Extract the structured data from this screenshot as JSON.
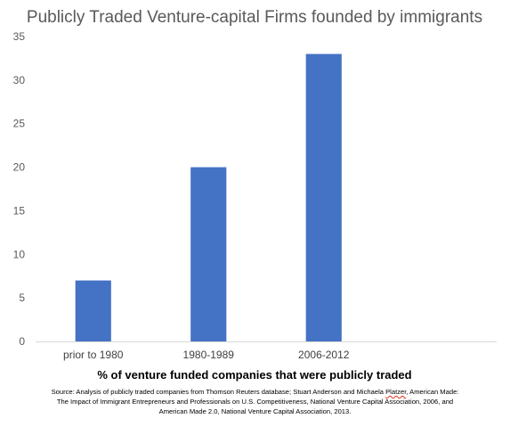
{
  "chart_data": {
    "type": "bar",
    "title": "Publicly Traded Venture-capital Firms founded by immigrants",
    "categories": [
      "prior to 1980",
      "1980-1989",
      "2006-2012"
    ],
    "values": [
      7,
      20,
      33
    ],
    "xlabel": "% of venture funded companies that were publicly traded",
    "ylabel": "",
    "ylim": [
      0,
      35
    ],
    "yticks": [
      0,
      5,
      10,
      15,
      20,
      25,
      30,
      35
    ],
    "grid": false,
    "legend": "none",
    "bar_color": "#4472c4",
    "axis_color": "#d9d9d9"
  },
  "source": {
    "line1_prefix": "Source: Analysis of publicly traded companies from Thomson Reuters database; Stuart Anderson and Michaela ",
    "line1_name": "Platzer",
    "line1_suffix": ", American Made:",
    "line2": "The Impact of Immigrant Entrepreneurs and Professionals on U.S. Competitiveness, National Venture Capital Association, 2006, and",
    "line3": "American Made 2.0, National Venture Capital Association, 2013."
  }
}
